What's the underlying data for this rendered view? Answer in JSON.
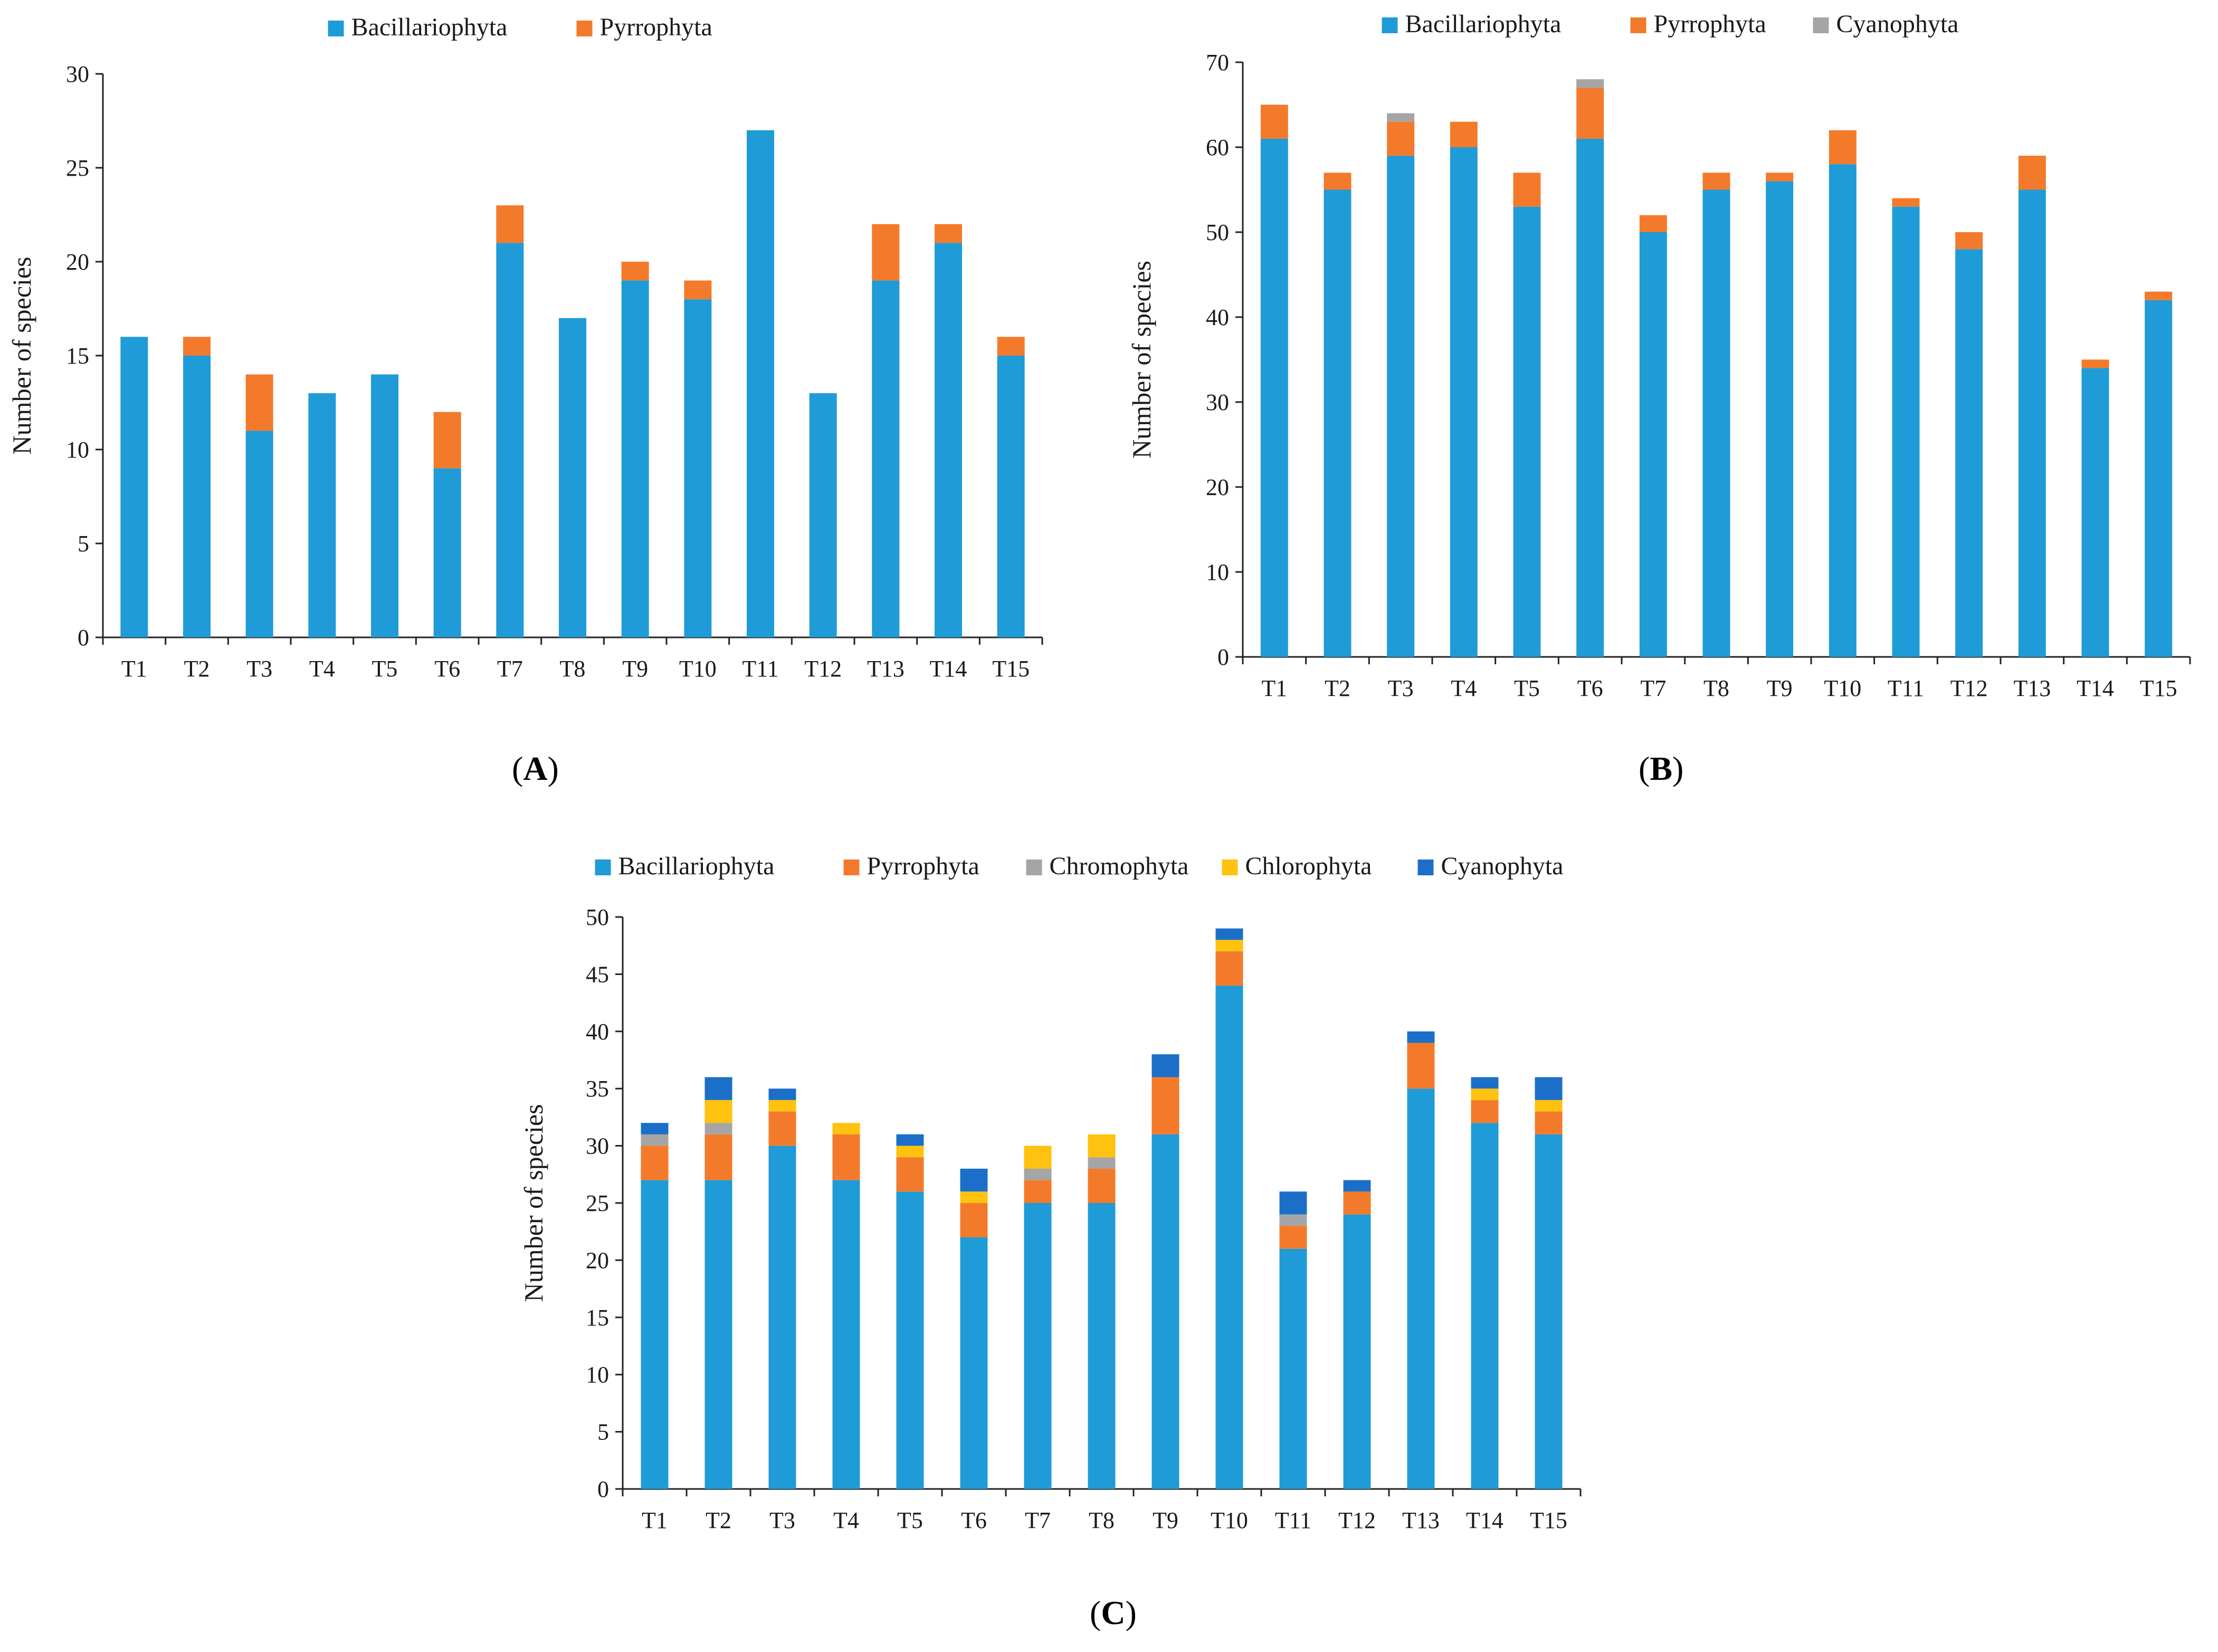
{
  "colors": {
    "Bacillariophyta": "#1f9bd7",
    "Pyrrophyta": "#f47a2b",
    "Cyanophyta_B": "#a5a5a5",
    "Chromophyta": "#a5a5a5",
    "Chlorophyta": "#ffc20e",
    "Cyanophyta_C": "#1c6fc9"
  },
  "captions": {
    "A": "A",
    "B": "B",
    "C": "C"
  },
  "chart_data": [
    {
      "id": "A",
      "type": "bar",
      "stacked": true,
      "title": "",
      "xlabel": "",
      "ylabel": "Number of species",
      "ylim": [
        0,
        30
      ],
      "yticks": [
        0,
        5,
        10,
        15,
        20,
        25,
        30
      ],
      "legend_position": "top-center",
      "categories": [
        "T1",
        "T2",
        "T3",
        "T4",
        "T5",
        "T6",
        "T7",
        "T8",
        "T9",
        "T10",
        "T11",
        "T12",
        "T13",
        "T14",
        "T15"
      ],
      "series": [
        {
          "name": "Bacillariophyta",
          "color_key": "Bacillariophyta",
          "values": [
            16,
            15,
            11,
            13,
            14,
            9,
            21,
            17,
            19,
            18,
            27,
            13,
            19,
            21,
            15
          ]
        },
        {
          "name": "Pyrrophyta",
          "color_key": "Pyrrophyta",
          "values": [
            0,
            1,
            3,
            0,
            0,
            3,
            2,
            0,
            1,
            1,
            0,
            0,
            3,
            1,
            1
          ]
        }
      ]
    },
    {
      "id": "B",
      "type": "bar",
      "stacked": true,
      "title": "",
      "xlabel": "",
      "ylabel": "Number of species",
      "ylim": [
        0,
        70
      ],
      "yticks": [
        0,
        10,
        20,
        30,
        40,
        50,
        60,
        70
      ],
      "legend_position": "top-center",
      "categories": [
        "T1",
        "T2",
        "T3",
        "T4",
        "T5",
        "T6",
        "T7",
        "T8",
        "T9",
        "T10",
        "T11",
        "T12",
        "T13",
        "T14",
        "T15"
      ],
      "series": [
        {
          "name": "Bacillariophyta",
          "color_key": "Bacillariophyta",
          "values": [
            61,
            55,
            59,
            60,
            53,
            61,
            50,
            55,
            56,
            58,
            53,
            48,
            55,
            34,
            42
          ]
        },
        {
          "name": "Pyrrophyta",
          "color_key": "Pyrrophyta",
          "values": [
            4,
            2,
            4,
            3,
            4,
            6,
            2,
            2,
            1,
            4,
            1,
            2,
            4,
            1,
            1
          ]
        },
        {
          "name": "Cyanophyta",
          "color_key": "Cyanophyta_B",
          "values": [
            0,
            0,
            1,
            0,
            0,
            1,
            0,
            0,
            0,
            0,
            0,
            0,
            0,
            0,
            0
          ]
        }
      ]
    },
    {
      "id": "C",
      "type": "bar",
      "stacked": true,
      "title": "",
      "xlabel": "",
      "ylabel": "Number of species",
      "ylim": [
        0,
        50
      ],
      "yticks": [
        0,
        5,
        10,
        15,
        20,
        25,
        30,
        35,
        40,
        45,
        50
      ],
      "legend_position": "top-center",
      "categories": [
        "T1",
        "T2",
        "T3",
        "T4",
        "T5",
        "T6",
        "T7",
        "T8",
        "T9",
        "T10",
        "T11",
        "T12",
        "T13",
        "T14",
        "T15"
      ],
      "series": [
        {
          "name": "Bacillariophyta",
          "color_key": "Bacillariophyta",
          "values": [
            27,
            27,
            30,
            27,
            26,
            22,
            25,
            25,
            31,
            44,
            21,
            24,
            35,
            32,
            31
          ]
        },
        {
          "name": "Pyrrophyta",
          "color_key": "Pyrrophyta",
          "values": [
            3,
            4,
            3,
            4,
            3,
            3,
            2,
            3,
            5,
            3,
            2,
            2,
            4,
            2,
            2
          ]
        },
        {
          "name": "Chromophyta",
          "color_key": "Chromophyta",
          "values": [
            1,
            1,
            0,
            0,
            0,
            0,
            1,
            1,
            0,
            0,
            1,
            0,
            0,
            0,
            0
          ]
        },
        {
          "name": "Chlorophyta",
          "color_key": "Chlorophyta",
          "values": [
            0,
            2,
            1,
            1,
            1,
            1,
            2,
            2,
            0,
            1,
            0,
            0,
            0,
            1,
            1
          ]
        },
        {
          "name": "Cyanophyta",
          "color_key": "Cyanophyta_C",
          "values": [
            1,
            2,
            1,
            0,
            1,
            2,
            0,
            0,
            2,
            1,
            2,
            1,
            1,
            1,
            2
          ]
        }
      ]
    }
  ]
}
